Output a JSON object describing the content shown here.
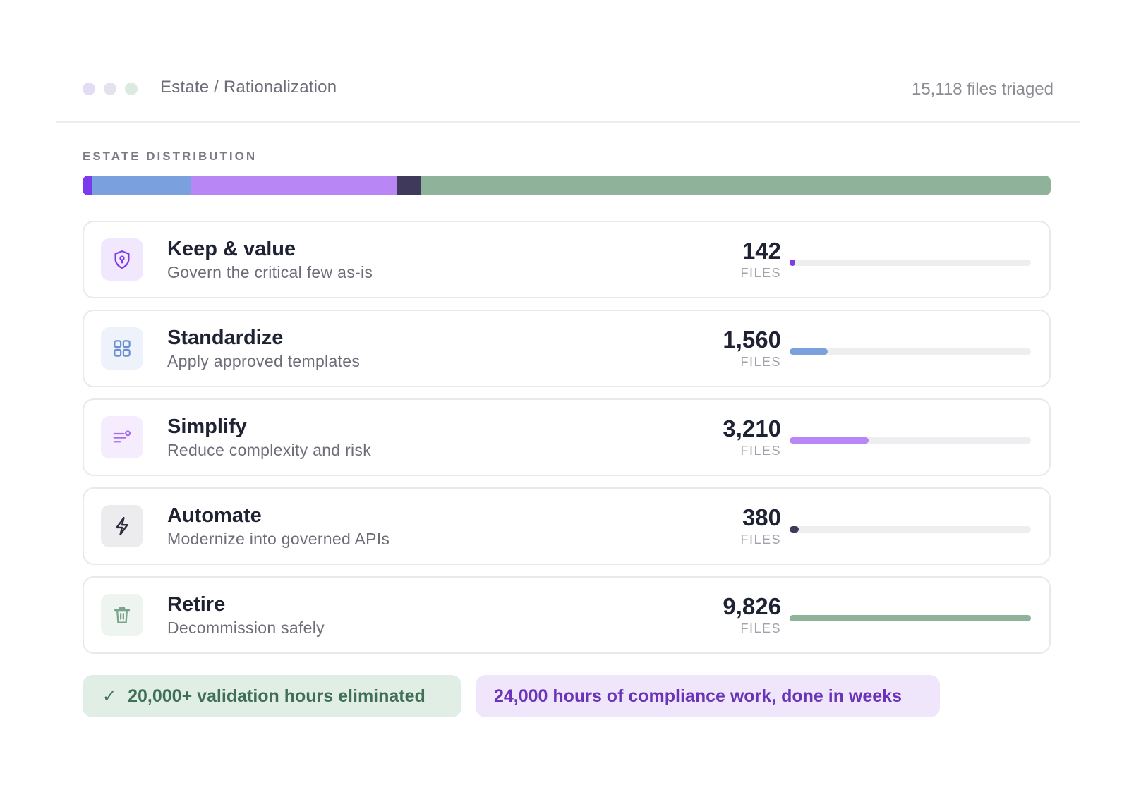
{
  "header": {
    "breadcrumb": "Estate / Rationalization",
    "files_triaged": "15,118 files triaged",
    "window_dots": [
      "#e4dcf3",
      "#e4e2ec",
      "#dcebe2"
    ]
  },
  "distribution": {
    "label": "ESTATE DISTRIBUTION",
    "segments": [
      {
        "category": "Keep & value",
        "value": 142,
        "color": "#7c3aed"
      },
      {
        "category": "Standardize",
        "value": 1560,
        "color": "#7aa0dd"
      },
      {
        "category": "Simplify",
        "value": 3210,
        "color": "#b987f5"
      },
      {
        "category": "Automate",
        "value": 380,
        "color": "#3f3a5c"
      },
      {
        "category": "Retire",
        "value": 9826,
        "color": "#8fb29b"
      }
    ]
  },
  "rows": [
    {
      "title": "Keep & value",
      "subtitle": "Govern the critical few as-is",
      "count": "142",
      "unit": "FILES",
      "fraction": 0.0145,
      "icon": "shield-icon",
      "icon_color": "#7c3aed",
      "icon_bg": "#f1e8fd",
      "bar_color": "#7c3aed"
    },
    {
      "title": "Standardize",
      "subtitle": "Apply approved templates",
      "count": "1,560",
      "unit": "FILES",
      "fraction": 0.159,
      "icon": "grid-icon",
      "icon_color": "#6b8fd0",
      "icon_bg": "#eef3fb",
      "bar_color": "#7aa0dd"
    },
    {
      "title": "Simplify",
      "subtitle": "Reduce complexity and risk",
      "count": "3,210",
      "unit": "FILES",
      "fraction": 0.327,
      "icon": "filter-icon",
      "icon_color": "#a56ef0",
      "icon_bg": "#f5edfd",
      "bar_color": "#b987f5"
    },
    {
      "title": "Automate",
      "subtitle": "Modernize into governed APIs",
      "count": "380",
      "unit": "FILES",
      "fraction": 0.039,
      "icon": "bolt-icon",
      "icon_color": "#2c2c3e",
      "icon_bg": "#ececef",
      "bar_color": "#3f3a5c"
    },
    {
      "title": "Retire",
      "subtitle": "Decommission safely",
      "count": "9,826",
      "unit": "FILES",
      "fraction": 1.0,
      "icon": "trash-icon",
      "icon_color": "#7aa48b",
      "icon_bg": "#eef4f0",
      "bar_color": "#8fb29b"
    }
  ],
  "footer": {
    "green_check": "✓",
    "green_text": "20,000+ validation hours eliminated",
    "purple_text": "24,000 hours of compliance work, done in weeks"
  }
}
